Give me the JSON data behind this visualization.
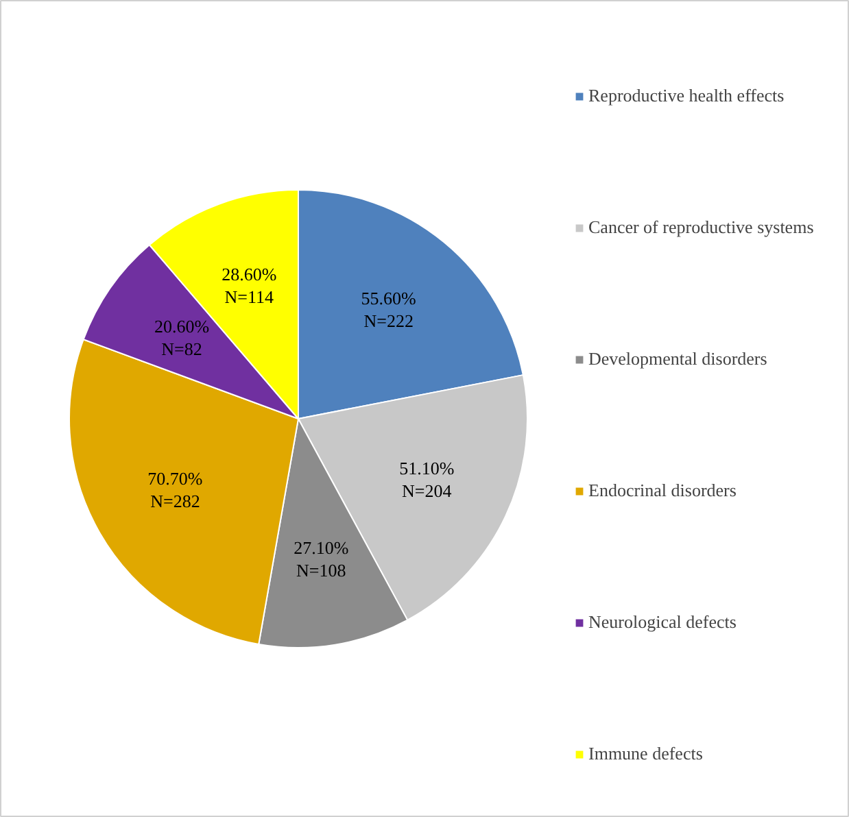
{
  "chart_data": {
    "type": "pie",
    "categories": [
      "Reproductive health effects",
      "Cancer of reproductive systems",
      "Developmental disorders",
      "Endocrinal disorders",
      "Neurological defects",
      "Immune defects"
    ],
    "values": [
      222,
      204,
      108,
      282,
      82,
      114
    ],
    "value_labels": [
      "55.60%\nN=222",
      "51.10%\nN=204",
      "27.10%\nN=108",
      "70.70%\nN=282",
      "20.60%\nN=82",
      "28.60%\nN=114"
    ],
    "colors": [
      "#4f81bd",
      "#c8c8c8",
      "#8c8c8c",
      "#e0a800",
      "#7030a0",
      "#ffff00"
    ],
    "legend": "right"
  }
}
